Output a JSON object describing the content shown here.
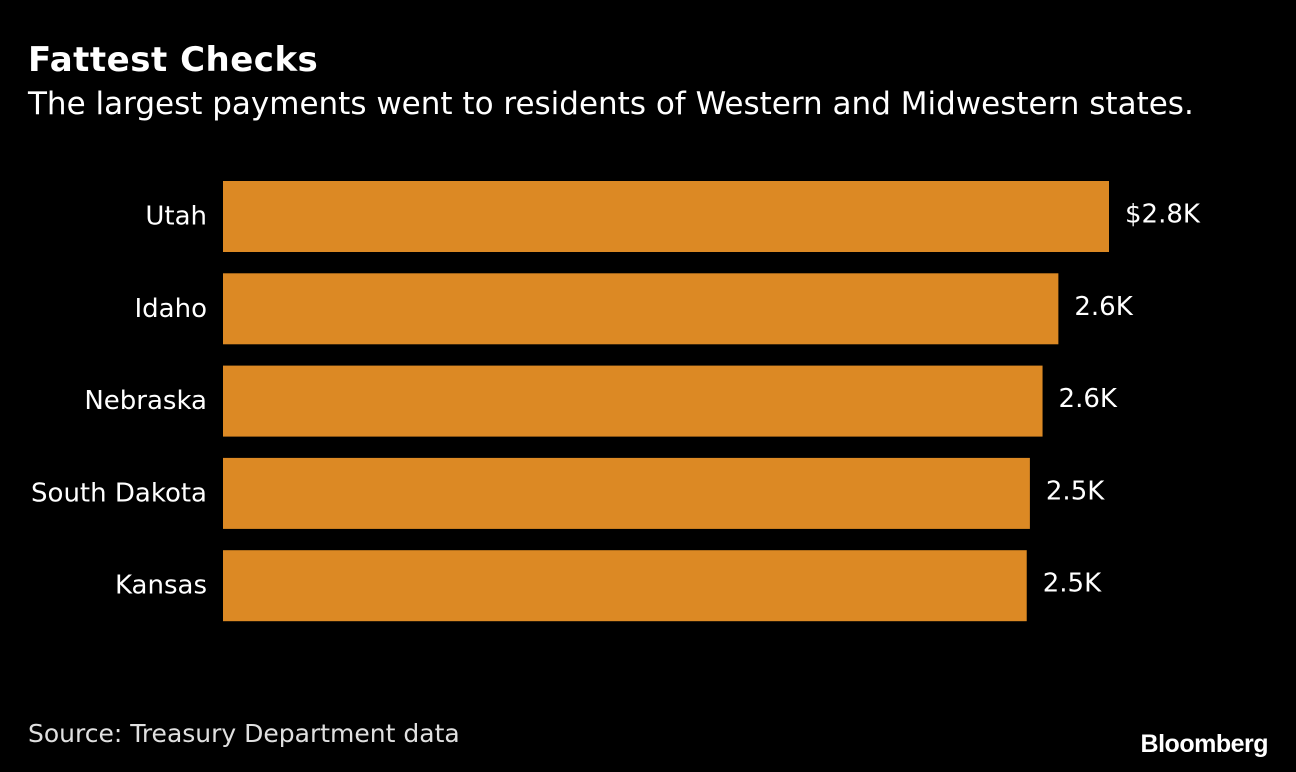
{
  "header": {
    "title": "Fattest Checks",
    "subtitle": "The largest payments went to residents of Western and Midwestern states."
  },
  "footer": {
    "source": "Source: Treasury Department data",
    "brand": "Bloomberg"
  },
  "colors": {
    "background": "#000000",
    "bar": "#DC8924",
    "text": "#ffffff"
  },
  "chart_data": {
    "type": "bar",
    "orientation": "horizontal",
    "categories": [
      "Utah",
      "Idaho",
      "Nebraska",
      "South Dakota",
      "Kansas"
    ],
    "values": [
      2.8,
      2.64,
      2.59,
      2.55,
      2.54
    ],
    "data_labels": [
      "$2.8K",
      "2.6K",
      "2.6K",
      "2.5K",
      "2.5K"
    ],
    "unit": "thousand USD",
    "xlim": [
      0,
      2.8
    ],
    "grid": false,
    "legend": "none"
  }
}
